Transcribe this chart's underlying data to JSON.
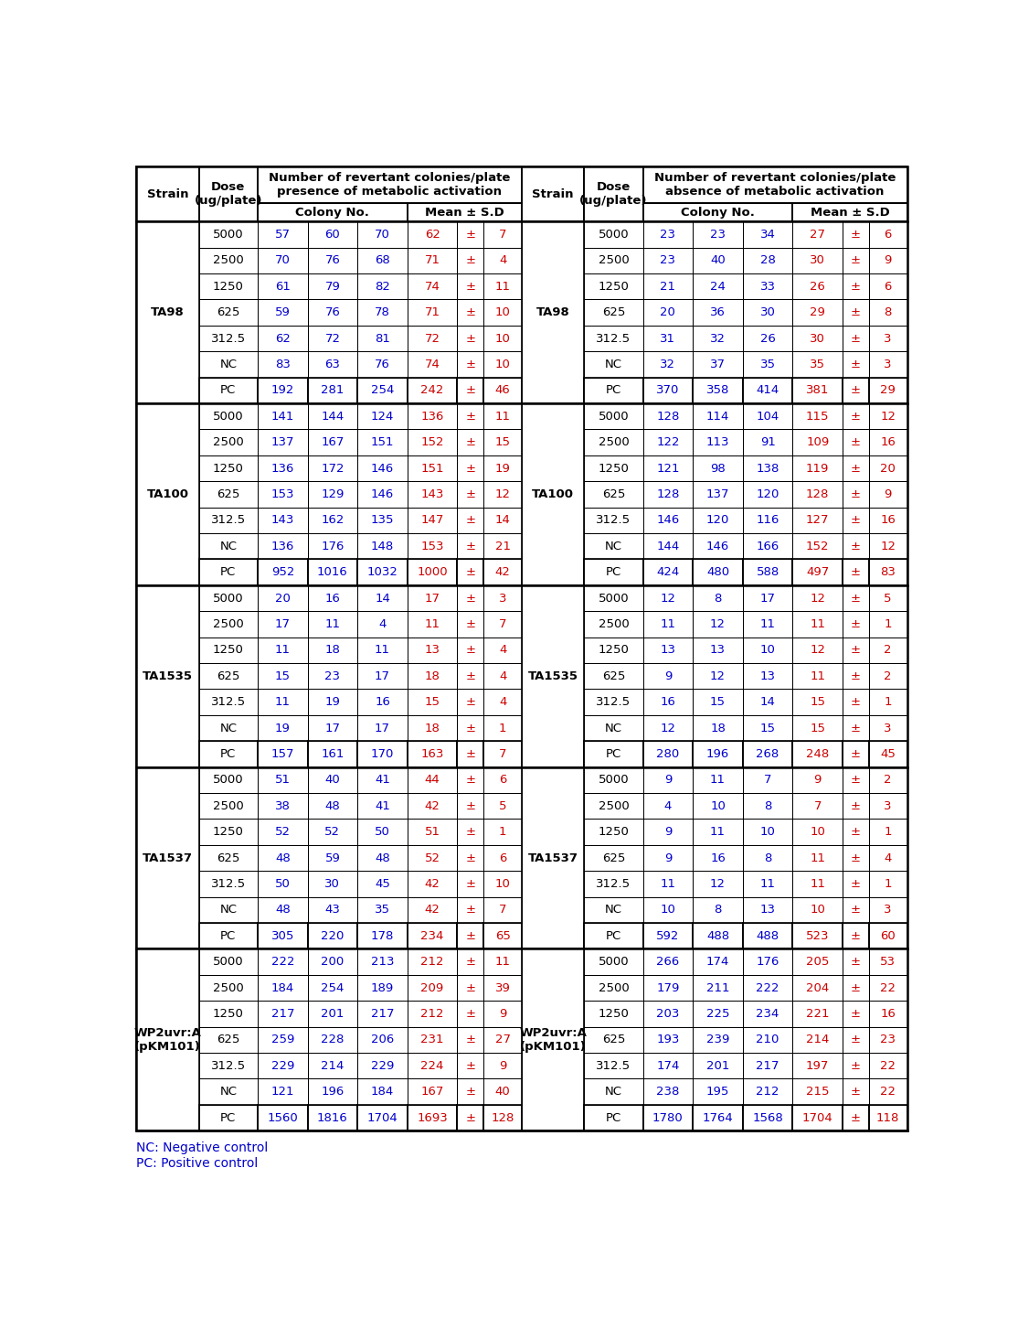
{
  "footnotes": [
    "NC: Negative control",
    "PC: Positive control"
  ],
  "strains": [
    {
      "name": "TA98",
      "rows": [
        [
          "5000",
          "57",
          "60",
          "70",
          "62",
          "±",
          "7",
          "5000",
          "23",
          "23",
          "34",
          "27",
          "±",
          "6"
        ],
        [
          "2500",
          "70",
          "76",
          "68",
          "71",
          "±",
          "4",
          "2500",
          "23",
          "40",
          "28",
          "30",
          "±",
          "9"
        ],
        [
          "1250",
          "61",
          "79",
          "82",
          "74",
          "±",
          "11",
          "1250",
          "21",
          "24",
          "33",
          "26",
          "±",
          "6"
        ],
        [
          "625",
          "59",
          "76",
          "78",
          "71",
          "±",
          "10",
          "625",
          "20",
          "36",
          "30",
          "29",
          "±",
          "8"
        ],
        [
          "312.5",
          "62",
          "72",
          "81",
          "72",
          "±",
          "10",
          "312.5",
          "31",
          "32",
          "26",
          "30",
          "±",
          "3"
        ],
        [
          "NC",
          "83",
          "63",
          "76",
          "74",
          "±",
          "10",
          "NC",
          "32",
          "37",
          "35",
          "35",
          "±",
          "3"
        ],
        [
          "PC",
          "192",
          "281",
          "254",
          "242",
          "±",
          "46",
          "PC",
          "370",
          "358",
          "414",
          "381",
          "±",
          "29"
        ]
      ]
    },
    {
      "name": "TA100",
      "rows": [
        [
          "5000",
          "141",
          "144",
          "124",
          "136",
          "±",
          "11",
          "5000",
          "128",
          "114",
          "104",
          "115",
          "±",
          "12"
        ],
        [
          "2500",
          "137",
          "167",
          "151",
          "152",
          "±",
          "15",
          "2500",
          "122",
          "113",
          "91",
          "109",
          "±",
          "16"
        ],
        [
          "1250",
          "136",
          "172",
          "146",
          "151",
          "±",
          "19",
          "1250",
          "121",
          "98",
          "138",
          "119",
          "±",
          "20"
        ],
        [
          "625",
          "153",
          "129",
          "146",
          "143",
          "±",
          "12",
          "625",
          "128",
          "137",
          "120",
          "128",
          "±",
          "9"
        ],
        [
          "312.5",
          "143",
          "162",
          "135",
          "147",
          "±",
          "14",
          "312.5",
          "146",
          "120",
          "116",
          "127",
          "±",
          "16"
        ],
        [
          "NC",
          "136",
          "176",
          "148",
          "153",
          "±",
          "21",
          "NC",
          "144",
          "146",
          "166",
          "152",
          "±",
          "12"
        ],
        [
          "PC",
          "952",
          "1016",
          "1032",
          "1000",
          "±",
          "42",
          "PC",
          "424",
          "480",
          "588",
          "497",
          "±",
          "83"
        ]
      ]
    },
    {
      "name": "TA1535",
      "rows": [
        [
          "5000",
          "20",
          "16",
          "14",
          "17",
          "±",
          "3",
          "5000",
          "12",
          "8",
          "17",
          "12",
          "±",
          "5"
        ],
        [
          "2500",
          "17",
          "11",
          "4",
          "11",
          "±",
          "7",
          "2500",
          "11",
          "12",
          "11",
          "11",
          "±",
          "1"
        ],
        [
          "1250",
          "11",
          "18",
          "11",
          "13",
          "±",
          "4",
          "1250",
          "13",
          "13",
          "10",
          "12",
          "±",
          "2"
        ],
        [
          "625",
          "15",
          "23",
          "17",
          "18",
          "±",
          "4",
          "625",
          "9",
          "12",
          "13",
          "11",
          "±",
          "2"
        ],
        [
          "312.5",
          "11",
          "19",
          "16",
          "15",
          "±",
          "4",
          "312.5",
          "16",
          "15",
          "14",
          "15",
          "±",
          "1"
        ],
        [
          "NC",
          "19",
          "17",
          "17",
          "18",
          "±",
          "1",
          "NC",
          "12",
          "18",
          "15",
          "15",
          "±",
          "3"
        ],
        [
          "PC",
          "157",
          "161",
          "170",
          "163",
          "±",
          "7",
          "PC",
          "280",
          "196",
          "268",
          "248",
          "±",
          "45"
        ]
      ]
    },
    {
      "name": "TA1537",
      "rows": [
        [
          "5000",
          "51",
          "40",
          "41",
          "44",
          "±",
          "6",
          "5000",
          "9",
          "11",
          "7",
          "9",
          "±",
          "2"
        ],
        [
          "2500",
          "38",
          "48",
          "41",
          "42",
          "±",
          "5",
          "2500",
          "4",
          "10",
          "8",
          "7",
          "±",
          "3"
        ],
        [
          "1250",
          "52",
          "52",
          "50",
          "51",
          "±",
          "1",
          "1250",
          "9",
          "11",
          "10",
          "10",
          "±",
          "1"
        ],
        [
          "625",
          "48",
          "59",
          "48",
          "52",
          "±",
          "6",
          "625",
          "9",
          "16",
          "8",
          "11",
          "±",
          "4"
        ],
        [
          "312.5",
          "50",
          "30",
          "45",
          "42",
          "±",
          "10",
          "312.5",
          "11",
          "12",
          "11",
          "11",
          "±",
          "1"
        ],
        [
          "NC",
          "48",
          "43",
          "35",
          "42",
          "±",
          "7",
          "NC",
          "10",
          "8",
          "13",
          "10",
          "±",
          "3"
        ],
        [
          "PC",
          "305",
          "220",
          "178",
          "234",
          "±",
          "65",
          "PC",
          "592",
          "488",
          "488",
          "523",
          "±",
          "60"
        ]
      ]
    },
    {
      "name": "WP2uvr:A\n(pKM101)",
      "rows": [
        [
          "5000",
          "222",
          "200",
          "213",
          "212",
          "±",
          "11",
          "5000",
          "266",
          "174",
          "176",
          "205",
          "±",
          "53"
        ],
        [
          "2500",
          "184",
          "254",
          "189",
          "209",
          "±",
          "39",
          "2500",
          "179",
          "211",
          "222",
          "204",
          "±",
          "22"
        ],
        [
          "1250",
          "217",
          "201",
          "217",
          "212",
          "±",
          "9",
          "1250",
          "203",
          "225",
          "234",
          "221",
          "±",
          "16"
        ],
        [
          "625",
          "259",
          "228",
          "206",
          "231",
          "±",
          "27",
          "625",
          "193",
          "239",
          "210",
          "214",
          "±",
          "23"
        ],
        [
          "312.5",
          "229",
          "214",
          "229",
          "224",
          "±",
          "9",
          "312.5",
          "174",
          "201",
          "217",
          "197",
          "±",
          "22"
        ],
        [
          "NC",
          "121",
          "196",
          "184",
          "167",
          "±",
          "40",
          "NC",
          "238",
          "195",
          "212",
          "215",
          "±",
          "22"
        ],
        [
          "PC",
          "1560",
          "1816",
          "1704",
          "1693",
          "±",
          "128",
          "PC",
          "1780",
          "1764",
          "1568",
          "1704",
          "±",
          "118"
        ]
      ]
    }
  ],
  "bg_color": "#ffffff",
  "text_color": "#000000",
  "colony_color_left": "#0000cd",
  "colony_color_right": "#0000cd",
  "mean_color": "#cc0000",
  "font_size": 9.5,
  "header_font_size": 9.5
}
